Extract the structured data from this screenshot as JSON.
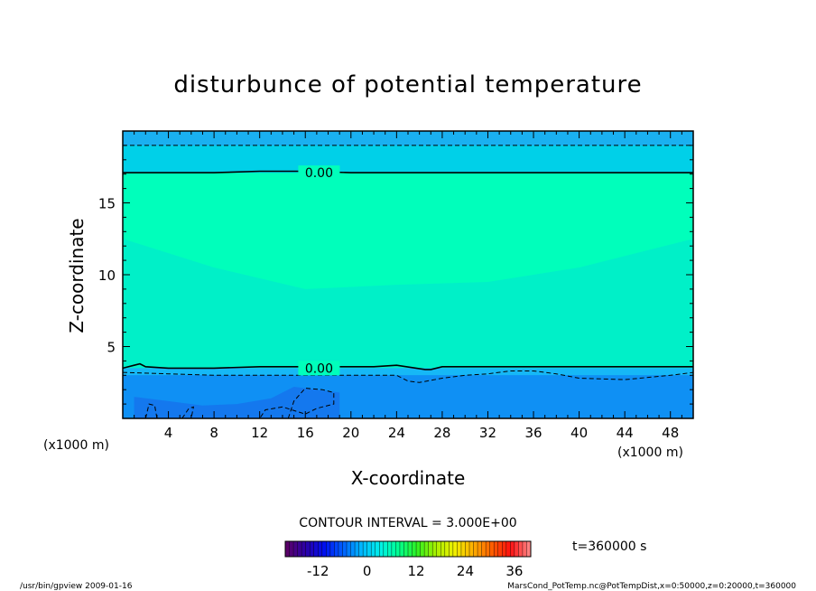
{
  "chart_data": {
    "type": "heatmap",
    "title": "disturbunce of potential temperature",
    "xlabel": "X-coordinate",
    "ylabel": "Z-coordinate",
    "x_unit": "(x1000 m)",
    "x_ticks": [
      "4",
      "8",
      "12",
      "16",
      "20",
      "24",
      "28",
      "32",
      "36",
      "40",
      "44",
      "48"
    ],
    "y_ticks": [
      "5",
      "10",
      "15"
    ],
    "xlim": [
      0,
      50
    ],
    "ylim": [
      0,
      20
    ],
    "contour_labels": [
      {
        "text": "0.00",
        "x": 17.2,
        "y": 17.1
      },
      {
        "text": "0.00",
        "x": 17.2,
        "y": 3.5
      }
    ],
    "zero_contour_levels": [
      {
        "x": [
          0,
          8,
          12,
          16,
          20,
          24,
          28,
          32,
          36,
          40,
          44,
          48,
          50
        ],
        "y": [
          17.1,
          17.1,
          17.2,
          17.2,
          17.1,
          17.1,
          17.1,
          17.1,
          17.1,
          17.1,
          17.1,
          17.1,
          17.1
        ]
      },
      {
        "x": [
          0,
          1,
          1.5,
          2,
          4,
          8,
          12,
          16,
          20,
          22,
          24,
          26.5,
          27,
          28,
          32,
          36,
          40,
          44,
          48,
          50
        ],
        "y": [
          3.5,
          3.7,
          3.8,
          3.6,
          3.5,
          3.5,
          3.6,
          3.6,
          3.6,
          3.6,
          3.7,
          3.4,
          3.4,
          3.6,
          3.6,
          3.6,
          3.6,
          3.6,
          3.6,
          3.6
        ]
      }
    ],
    "negative_contour_levels": [
      {
        "x": [
          0,
          50
        ],
        "y": [
          19.0,
          19.0
        ]
      },
      {
        "x": [
          0,
          4,
          8,
          12,
          16,
          20,
          24,
          25,
          26,
          28,
          30,
          32,
          34,
          36,
          38,
          40,
          44,
          48,
          50
        ],
        "y": [
          3.2,
          3.1,
          3.0,
          3.0,
          3.0,
          3.0,
          3.0,
          2.6,
          2.5,
          2.8,
          3.0,
          3.1,
          3.3,
          3.3,
          3.1,
          2.8,
          2.7,
          3.0,
          3.2
        ]
      },
      {
        "x": [
          14.5,
          15,
          16,
          17.5,
          18.5,
          18.5,
          17,
          16,
          14,
          12.5,
          12,
          13,
          14.5
        ],
        "y": [
          0,
          1.2,
          2.1,
          2.0,
          1.8,
          1.0,
          0.7,
          0.3,
          0.8,
          0.6,
          0,
          0,
          0
        ]
      },
      {
        "x": [
          2.0,
          2.3,
          2.8,
          3.0
        ],
        "y": [
          0,
          1.0,
          0.9,
          0
        ]
      },
      {
        "x": [
          5.2,
          5.8,
          6.2,
          6.0
        ],
        "y": [
          0,
          0.7,
          0.8,
          0
        ]
      }
    ],
    "color_layers": [
      {
        "color": "#00ffbb",
        "value": 0,
        "x": [
          0,
          50
        ],
        "y_top": [
          17.1,
          17.1
        ],
        "y_bottom": [
          3.5,
          3.5
        ]
      },
      {
        "color": "#00f0c8",
        "value": 0,
        "x": [
          0,
          8,
          16,
          24,
          32,
          40,
          50
        ],
        "y_top": [
          12.5,
          10.5,
          9.0,
          9.3,
          9.5,
          10.5,
          12.5
        ],
        "y_bottom": [
          3.5,
          3.5,
          3.5,
          3.5,
          3.5,
          3.5,
          3.5
        ]
      },
      {
        "color": "#00d0e8",
        "value": -1.5,
        "x": [
          0,
          50
        ],
        "y_top": [
          19.0,
          19.0
        ],
        "y_bottom": [
          17.1,
          17.1
        ]
      },
      {
        "color": "#1ab0f0",
        "value": -1.5,
        "x": [
          0,
          50
        ],
        "y_top": [
          20,
          20
        ],
        "y_bottom": [
          19.0,
          19.0
        ]
      },
      {
        "color": "#16b8f6",
        "value": -1.5,
        "x": [
          0,
          50
        ],
        "y_top": [
          3.5,
          3.5
        ],
        "y_bottom": [
          3.0,
          3.0
        ]
      },
      {
        "color": "#0f90f4",
        "value": -3,
        "x": [
          0,
          50
        ],
        "y_top": [
          3.0,
          3.0
        ],
        "y_bottom": [
          0,
          0
        ]
      },
      {
        "color": "#1478ee",
        "value": -4.5,
        "x": [
          1,
          4,
          7,
          10,
          13,
          15,
          17,
          19
        ],
        "y_top": [
          1.5,
          1.2,
          0.9,
          1.0,
          1.4,
          2.2,
          2.0,
          1.8
        ],
        "y_bottom": [
          0,
          0,
          0,
          0,
          0,
          0,
          0,
          0
        ]
      }
    ],
    "contour_interval": "CONTOUR INTERVAL = 3.000E+00",
    "time_label": "t=360000 s",
    "colorbar": {
      "ticks": [
        "-12",
        "0",
        "12",
        "24",
        "36"
      ],
      "tick_values": [
        -12,
        0,
        12,
        24,
        36
      ],
      "range": [
        -20,
        40
      ],
      "stops": [
        "#5a006a",
        "#2a00a8",
        "#0010f0",
        "#0060ff",
        "#00b8ff",
        "#00f0e8",
        "#00ff90",
        "#30f020",
        "#a8f000",
        "#f0f000",
        "#ffb000",
        "#ff6000",
        "#ff1010",
        "#ff8080"
      ]
    }
  },
  "footer": {
    "left": "/usr/bin/gpview   2009-01-16",
    "right": "MarsCond_PotTemp.nc@PotTempDist,x=0:50000,z=0:20000,t=360000"
  },
  "colors": {
    "axis": "#000000",
    "background": "#ffffff"
  }
}
